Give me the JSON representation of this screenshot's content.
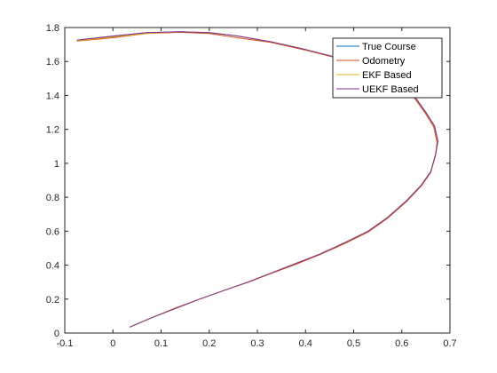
{
  "chart_data": {
    "type": "line",
    "xlim": [
      -0.1,
      0.7
    ],
    "ylim": [
      0,
      1.8
    ],
    "xticks": [
      "-0.1",
      "0",
      "0.1",
      "0.2",
      "0.3",
      "0.4",
      "0.5",
      "0.6",
      "0.7"
    ],
    "yticks": [
      "0",
      "0.2",
      "0.4",
      "0.6",
      "0.8",
      "1",
      "1.2",
      "1.4",
      "1.6",
      "1.8"
    ],
    "grid": false,
    "legend_position": "top-right",
    "series": [
      {
        "name": "True Course",
        "color": "#0072BD",
        "points": [
          [
            0.035,
            0.035
          ],
          [
            0.08,
            0.09
          ],
          [
            0.13,
            0.145
          ],
          [
            0.18,
            0.2
          ],
          [
            0.23,
            0.25
          ],
          [
            0.28,
            0.3
          ],
          [
            0.33,
            0.355
          ],
          [
            0.38,
            0.41
          ],
          [
            0.43,
            0.465
          ],
          [
            0.48,
            0.53
          ],
          [
            0.53,
            0.6
          ],
          [
            0.57,
            0.68
          ],
          [
            0.61,
            0.78
          ],
          [
            0.64,
            0.87
          ],
          [
            0.66,
            0.95
          ],
          [
            0.67,
            1.05
          ],
          [
            0.675,
            1.13
          ],
          [
            0.668,
            1.22
          ],
          [
            0.65,
            1.3
          ],
          [
            0.63,
            1.38
          ],
          [
            0.6,
            1.46
          ],
          [
            0.57,
            1.52
          ],
          [
            0.53,
            1.57
          ],
          [
            0.47,
            1.62
          ],
          [
            0.4,
            1.67
          ],
          [
            0.33,
            1.715
          ],
          [
            0.26,
            1.75
          ],
          [
            0.2,
            1.77
          ],
          [
            0.14,
            1.775
          ],
          [
            0.07,
            1.77
          ],
          [
            0.0,
            1.75
          ],
          [
            -0.075,
            1.725
          ]
        ]
      },
      {
        "name": "Odometry",
        "color": "#D95319",
        "points": [
          [
            0.035,
            0.035
          ],
          [
            0.08,
            0.09
          ],
          [
            0.13,
            0.148
          ],
          [
            0.18,
            0.2
          ],
          [
            0.23,
            0.25
          ],
          [
            0.28,
            0.298
          ],
          [
            0.33,
            0.352
          ],
          [
            0.38,
            0.405
          ],
          [
            0.43,
            0.462
          ],
          [
            0.48,
            0.525
          ],
          [
            0.53,
            0.595
          ],
          [
            0.57,
            0.675
          ],
          [
            0.61,
            0.775
          ],
          [
            0.64,
            0.865
          ],
          [
            0.66,
            0.945
          ],
          [
            0.67,
            1.045
          ],
          [
            0.673,
            1.125
          ],
          [
            0.666,
            1.215
          ],
          [
            0.648,
            1.298
          ],
          [
            0.628,
            1.378
          ],
          [
            0.598,
            1.458
          ],
          [
            0.568,
            1.518
          ],
          [
            0.528,
            1.568
          ],
          [
            0.468,
            1.618
          ],
          [
            0.398,
            1.668
          ],
          [
            0.328,
            1.712
          ],
          [
            0.258,
            1.74
          ],
          [
            0.2,
            1.765
          ],
          [
            0.14,
            1.772
          ],
          [
            0.07,
            1.765
          ],
          [
            0.0,
            1.74
          ],
          [
            -0.075,
            1.72
          ]
        ]
      },
      {
        "name": "EKF Based",
        "color": "#EDB120",
        "points": [
          [
            0.035,
            0.035
          ],
          [
            0.08,
            0.09
          ],
          [
            0.13,
            0.145
          ],
          [
            0.18,
            0.2
          ],
          [
            0.23,
            0.25
          ],
          [
            0.28,
            0.3
          ],
          [
            0.33,
            0.355
          ],
          [
            0.38,
            0.41
          ],
          [
            0.43,
            0.465
          ],
          [
            0.48,
            0.53
          ],
          [
            0.53,
            0.6
          ],
          [
            0.57,
            0.68
          ],
          [
            0.61,
            0.78
          ],
          [
            0.64,
            0.87
          ],
          [
            0.66,
            0.95
          ],
          [
            0.67,
            1.05
          ],
          [
            0.675,
            1.13
          ],
          [
            0.668,
            1.22
          ],
          [
            0.65,
            1.3
          ],
          [
            0.63,
            1.38
          ],
          [
            0.6,
            1.46
          ],
          [
            0.57,
            1.52
          ],
          [
            0.53,
            1.57
          ],
          [
            0.47,
            1.62
          ],
          [
            0.4,
            1.67
          ],
          [
            0.33,
            1.715
          ],
          [
            0.26,
            1.75
          ],
          [
            0.2,
            1.77
          ],
          [
            0.14,
            1.775
          ],
          [
            0.07,
            1.765
          ],
          [
            0.0,
            1.745
          ],
          [
            -0.075,
            1.722
          ]
        ]
      },
      {
        "name": "UEKF Based",
        "color": "#7E2F8E",
        "points": [
          [
            0.035,
            0.035
          ],
          [
            0.08,
            0.09
          ],
          [
            0.13,
            0.145
          ],
          [
            0.18,
            0.2
          ],
          [
            0.23,
            0.25
          ],
          [
            0.28,
            0.3
          ],
          [
            0.33,
            0.355
          ],
          [
            0.38,
            0.41
          ],
          [
            0.43,
            0.465
          ],
          [
            0.48,
            0.53
          ],
          [
            0.53,
            0.6
          ],
          [
            0.57,
            0.68
          ],
          [
            0.61,
            0.78
          ],
          [
            0.64,
            0.87
          ],
          [
            0.66,
            0.95
          ],
          [
            0.67,
            1.05
          ],
          [
            0.675,
            1.13
          ],
          [
            0.668,
            1.22
          ],
          [
            0.65,
            1.3
          ],
          [
            0.63,
            1.38
          ],
          [
            0.6,
            1.46
          ],
          [
            0.57,
            1.52
          ],
          [
            0.53,
            1.57
          ],
          [
            0.47,
            1.62
          ],
          [
            0.4,
            1.67
          ],
          [
            0.33,
            1.715
          ],
          [
            0.26,
            1.75
          ],
          [
            0.2,
            1.77
          ],
          [
            0.14,
            1.775
          ],
          [
            0.07,
            1.77
          ],
          [
            0.0,
            1.75
          ],
          [
            -0.075,
            1.725
          ]
        ]
      }
    ]
  }
}
